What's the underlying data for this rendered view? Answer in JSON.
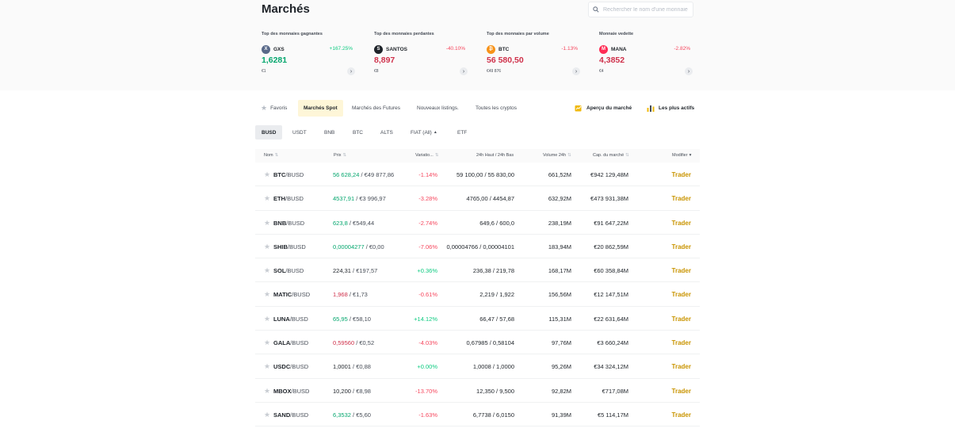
{
  "header": {
    "title": "Marchés",
    "search_placeholder": "Rechercher le nom d'une monnaie"
  },
  "cards": [
    {
      "title": "Top des monnaies gagnantes",
      "coin": "GXS",
      "change": "+167.25%",
      "change_type": "up",
      "price": "1,6281",
      "sub": "€1",
      "icon_color": "#5a6a8a",
      "icon_glyph": "X"
    },
    {
      "title": "Top des monnaies perdantes",
      "coin": "SANTOS",
      "change": "-40.10%",
      "change_type": "down",
      "price": "8,897",
      "sub": "€8",
      "icon_color": "#1e2329",
      "icon_glyph": "S"
    },
    {
      "title": "Top des monnaies par volume",
      "coin": "BTC",
      "change": "-1.13%",
      "change_type": "down",
      "price": "56 580,50",
      "sub": "€49 876",
      "icon_color": "#f7931a",
      "icon_glyph": "₿"
    },
    {
      "title": "Monnaie vedette",
      "coin": "MANA",
      "change": "-2.82%",
      "change_type": "down",
      "price": "4,3852",
      "sub": "€4",
      "icon_color": "#ff2d55",
      "icon_glyph": "M"
    }
  ],
  "tabs": [
    {
      "label": "Favoris"
    },
    {
      "label": "Marchés Spot"
    },
    {
      "label": "Marchés des Futures"
    },
    {
      "label": "Nouveaux listings."
    },
    {
      "label": "Toutes les cryptos"
    }
  ],
  "right_links": {
    "overview": "Aperçu du marché",
    "most_active": "Les plus actifs"
  },
  "subtabs": [
    {
      "label": "BUSD"
    },
    {
      "label": "USDT"
    },
    {
      "label": "BNB"
    },
    {
      "label": "BTC"
    },
    {
      "label": "ALTS"
    },
    {
      "label": "FIAT (All)"
    },
    {
      "label": "ETF"
    }
  ],
  "table": {
    "headers": {
      "name": "Nom",
      "price": "Prix",
      "change": "Variatio...",
      "highlow": "24h Haut / 24h Bas",
      "volume": "Volume 24h",
      "cap": "Cap. du marché",
      "edit": "Modifier"
    },
    "trade_label": "Trader",
    "rows": [
      {
        "base": "BTC",
        "quote": "/BUSD",
        "price": "56 628,24",
        "price_eur": " / €49 877,86",
        "price_dir": "up",
        "change": "-1.14%",
        "change_dir": "down",
        "highlow": "59 100,00 / 55 830,00",
        "volume": "661,52M",
        "cap": "€942 129,48M"
      },
      {
        "base": "ETH",
        "quote": "/BUSD",
        "price": "4537,91",
        "price_eur": " / €3 996,97",
        "price_dir": "up",
        "change": "-3.28%",
        "change_dir": "down",
        "highlow": "4765,00 / 4454,87",
        "volume": "632,92M",
        "cap": "€473 931,38M"
      },
      {
        "base": "BNB",
        "quote": "/BUSD",
        "price": "623,8",
        "price_eur": " / €549,44",
        "price_dir": "up",
        "change": "-2.74%",
        "change_dir": "down",
        "highlow": "649,6 / 600,0",
        "volume": "238,19M",
        "cap": "€91 647,22M"
      },
      {
        "base": "SHIB",
        "quote": "/BUSD",
        "price": "0,00004277",
        "price_eur": " / €0,00",
        "price_dir": "up",
        "change": "-7.06%",
        "change_dir": "down",
        "highlow": "0,00004766 / 0,00004101",
        "volume": "183,94M",
        "cap": "€20 862,59M"
      },
      {
        "base": "SOL",
        "quote": "/BUSD",
        "price": "224,31",
        "price_eur": " / €197,57",
        "price_dir": "neutral",
        "change": "+0.36%",
        "change_dir": "up",
        "highlow": "236,38 / 219,78",
        "volume": "168,17M",
        "cap": "€60 358,84M"
      },
      {
        "base": "MATIC",
        "quote": "/BUSD",
        "price": "1,968",
        "price_eur": " / €1,73",
        "price_dir": "down",
        "change": "-0.61%",
        "change_dir": "down",
        "highlow": "2,219 / 1,922",
        "volume": "156,56M",
        "cap": "€12 147,51M"
      },
      {
        "base": "LUNA",
        "quote": "/BUSD",
        "price": "65,95",
        "price_eur": " / €58,10",
        "price_dir": "up",
        "change": "+14.12%",
        "change_dir": "up",
        "highlow": "66,47 / 57,68",
        "volume": "115,31M",
        "cap": "€22 631,64M"
      },
      {
        "base": "GALA",
        "quote": "/BUSD",
        "price": "0,59560",
        "price_eur": " / €0,52",
        "price_dir": "down",
        "change": "-4.03%",
        "change_dir": "down",
        "highlow": "0,67985 / 0,58104",
        "volume": "97,76M",
        "cap": "€3 660,24M"
      },
      {
        "base": "USDC",
        "quote": "/BUSD",
        "price": "1,0001",
        "price_eur": " / €0,88",
        "price_dir": "neutral",
        "change": "+0.00%",
        "change_dir": "up",
        "highlow": "1,0008 / 1,0000",
        "volume": "95,26M",
        "cap": "€34 324,12M"
      },
      {
        "base": "MBOX",
        "quote": "/BUSD",
        "price": "10,200",
        "price_eur": " / €8,98",
        "price_dir": "neutral",
        "change": "-13.70%",
        "change_dir": "down",
        "highlow": "12,350 / 9,500",
        "volume": "92,82M",
        "cap": "€717,08M"
      },
      {
        "base": "SAND",
        "quote": "/BUSD",
        "price": "6,3532",
        "price_eur": " / €5,60",
        "price_dir": "up",
        "change": "-1.63%",
        "change_dir": "down",
        "highlow": "6,7738 / 6,0150",
        "volume": "91,39M",
        "cap": "€5 114,17M"
      }
    ]
  },
  "colors": {
    "up": "#0ecb81",
    "down": "#f6465d",
    "accent": "#c99400",
    "active_tab_bg": "#fef6d8"
  }
}
